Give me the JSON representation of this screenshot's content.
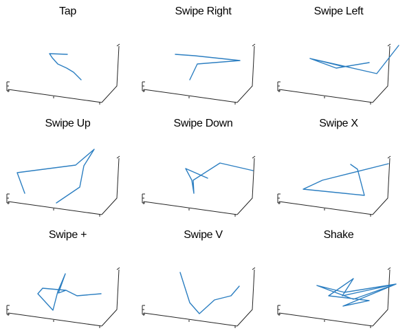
{
  "figure": {
    "line_color": "#2b7ec1",
    "axis_color": "#222222",
    "background": "#ffffff"
  },
  "chart_data": [
    {
      "type": "line",
      "title": "Tap",
      "series": [
        {
          "values": [
            [
              72,
              78
            ],
            [
              76,
              84
            ],
            [
              84,
              93
            ],
            [
              97,
              99
            ],
            [
              107,
              105
            ],
            [
              118,
              116
            ]
          ]
        }
      ],
      "path_start": [
        98,
        79
      ],
      "path_order": [
        [
          98,
          79
        ],
        [
          72,
          78
        ],
        [
          76,
          84
        ],
        [
          84,
          93
        ],
        [
          97,
          99
        ],
        [
          107,
          105
        ],
        [
          118,
          116
        ]
      ]
    },
    {
      "type": "line",
      "title": "Swipe Right",
      "path": [
        [
          255,
          79
        ],
        [
          283,
          81
        ],
        [
          349,
          88
        ],
        [
          287,
          93
        ],
        [
          276,
          116
        ]
      ]
    },
    {
      "type": "line",
      "title": "Swipe Left",
      "path": [
        [
          451,
          85
        ],
        [
          500,
          97
        ],
        [
          537,
          91
        ],
        [
          489,
          99
        ],
        [
          451,
          85
        ],
        [
          548,
          107
        ],
        [
          580,
          66
        ]
      ]
    },
    {
      "type": "line",
      "title": "Swipe Up",
      "path": [
        [
          36,
          281
        ],
        [
          25,
          251
        ],
        [
          110,
          240
        ],
        [
          137,
          217
        ],
        [
          122,
          241
        ],
        [
          116,
          272
        ],
        [
          82,
          295
        ]
      ]
    },
    {
      "type": "line",
      "title": "Swipe Down",
      "path": [
        [
          302,
          259
        ],
        [
          270,
          245
        ],
        [
          279,
          262
        ],
        [
          282,
          281
        ],
        [
          281,
          262
        ],
        [
          320,
          237
        ],
        [
          368,
          248
        ]
      ]
    },
    {
      "type": "line",
      "title": "Swipe X",
      "path": [
        [
          510,
          239
        ],
        [
          520,
          246
        ],
        [
          530,
          284
        ],
        [
          441,
          275
        ],
        [
          469,
          262
        ],
        [
          565,
          238
        ]
      ]
    },
    {
      "type": "line",
      "title": "Swipe +",
      "path": [
        [
          62,
          419
        ],
        [
          96,
          422
        ],
        [
          85,
          426
        ],
        [
          95,
          398
        ],
        [
          84,
          424
        ],
        [
          77,
          451
        ],
        [
          55,
          427
        ],
        [
          62,
          419
        ],
        [
          96,
          422
        ],
        [
          112,
          430
        ],
        [
          147,
          427
        ]
      ]
    },
    {
      "type": "line",
      "title": "Swipe V",
      "path": [
        [
          262,
          396
        ],
        [
          276,
          440
        ],
        [
          290,
          456
        ],
        [
          312,
          436
        ],
        [
          336,
          430
        ],
        [
          348,
          416
        ]
      ]
    },
    {
      "type": "line",
      "title": "Shake",
      "path": [
        [
          461,
          415
        ],
        [
          514,
          435
        ],
        [
          576,
          413
        ],
        [
          499,
          445
        ],
        [
          537,
          437
        ],
        [
          478,
          430
        ],
        [
          514,
          405
        ],
        [
          498,
          430
        ],
        [
          576,
          413
        ],
        [
          501,
          425
        ],
        [
          461,
          415
        ]
      ]
    }
  ]
}
